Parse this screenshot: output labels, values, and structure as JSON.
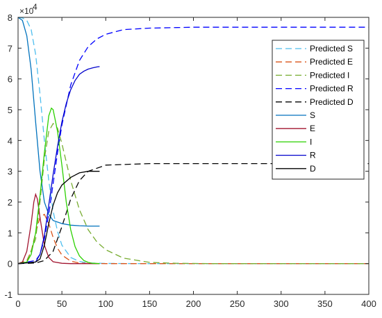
{
  "chart_data": {
    "type": "line",
    "title": "",
    "xlabel": "",
    "ylabel": "",
    "y_multiplier_label": "×10",
    "y_multiplier_exponent": "4",
    "xlim": [
      0,
      400
    ],
    "ylim": [
      -1,
      8
    ],
    "x_ticks": [
      0,
      50,
      100,
      150,
      200,
      250,
      300,
      350,
      400
    ],
    "y_ticks": [
      -1,
      0,
      1,
      2,
      3,
      4,
      5,
      6,
      7,
      8
    ],
    "grid": false,
    "legend_position": "top-right",
    "series": [
      {
        "name": "Predicted S",
        "color": "#4DBEEE",
        "style": "dashed",
        "x": [
          0,
          5,
          10,
          15,
          20,
          25,
          30,
          35,
          40,
          45,
          50,
          60,
          70,
          80,
          100,
          150,
          200,
          300,
          400
        ],
        "values": [
          8.0,
          7.98,
          7.9,
          7.6,
          6.8,
          5.5,
          4.0,
          2.7,
          1.7,
          1.05,
          0.6,
          0.2,
          0.07,
          0.02,
          0.005,
          0.0,
          0.0,
          0.0,
          0.0
        ]
      },
      {
        "name": "Predicted E",
        "color": "#D95319",
        "style": "dashed",
        "x": [
          0,
          10,
          15,
          20,
          25,
          30,
          35,
          40,
          45,
          50,
          60,
          70,
          80,
          100,
          150,
          200,
          300,
          400
        ],
        "values": [
          0.0,
          0.1,
          0.4,
          1.0,
          1.5,
          1.6,
          1.3,
          0.85,
          0.5,
          0.28,
          0.08,
          0.02,
          0.005,
          0.0,
          0.0,
          0.0,
          0.0,
          0.0
        ]
      },
      {
        "name": "Predicted I",
        "color": "#77AC30",
        "style": "dashed",
        "x": [
          0,
          10,
          20,
          25,
          30,
          35,
          40,
          45,
          50,
          55,
          60,
          70,
          80,
          90,
          100,
          120,
          150,
          180,
          220,
          300,
          400
        ],
        "values": [
          0.0,
          0.05,
          0.8,
          2.0,
          3.4,
          4.3,
          4.55,
          4.4,
          3.9,
          3.3,
          2.7,
          1.75,
          1.1,
          0.7,
          0.45,
          0.18,
          0.04,
          0.01,
          0.0,
          0.0,
          0.0
        ]
      },
      {
        "name": "Predicted R",
        "color": "#0000FF",
        "style": "dashed",
        "x": [
          0,
          20,
          25,
          30,
          35,
          40,
          45,
          50,
          60,
          70,
          80,
          90,
          100,
          120,
          150,
          200,
          250,
          300,
          350,
          400
        ],
        "values": [
          0.0,
          0.1,
          0.3,
          0.8,
          1.6,
          2.6,
          3.6,
          4.5,
          5.8,
          6.6,
          7.05,
          7.3,
          7.45,
          7.6,
          7.65,
          7.68,
          7.68,
          7.68,
          7.68,
          7.68
        ]
      },
      {
        "name": "Predicted D",
        "color": "#000000",
        "style": "dashed",
        "x": [
          0,
          20,
          30,
          40,
          50,
          60,
          70,
          80,
          100,
          150,
          200,
          300,
          400
        ],
        "values": [
          0.0,
          0.02,
          0.1,
          0.4,
          1.2,
          2.1,
          2.7,
          3.0,
          3.2,
          3.25,
          3.25,
          3.25,
          3.25
        ]
      },
      {
        "name": "S",
        "color": "#0072BD",
        "style": "solid",
        "x": [
          0,
          5,
          10,
          15,
          20,
          25,
          30,
          35,
          40,
          50,
          60,
          70,
          80,
          93
        ],
        "values": [
          8.0,
          7.9,
          7.4,
          6.3,
          4.6,
          3.0,
          2.0,
          1.6,
          1.4,
          1.3,
          1.25,
          1.23,
          1.22,
          1.22
        ]
      },
      {
        "name": "E",
        "color": "#A2142F",
        "style": "solid",
        "x": [
          0,
          5,
          10,
          15,
          18,
          20,
          22,
          25,
          30,
          35,
          40,
          50,
          60,
          70,
          80,
          93
        ],
        "values": [
          0.0,
          0.05,
          0.4,
          1.3,
          2.0,
          2.25,
          2.1,
          1.5,
          0.6,
          0.2,
          0.06,
          0.01,
          0.0,
          0.0,
          0.0,
          0.0
        ]
      },
      {
        "name": "I",
        "color": "#2BD000",
        "style": "solid",
        "x": [
          0,
          10,
          15,
          20,
          25,
          30,
          35,
          38,
          40,
          45,
          50,
          55,
          60,
          65,
          70,
          75,
          80,
          85,
          93
        ],
        "values": [
          0.0,
          0.05,
          0.3,
          1.0,
          2.2,
          3.6,
          4.8,
          5.05,
          5.0,
          4.3,
          3.2,
          2.0,
          1.1,
          0.55,
          0.25,
          0.1,
          0.04,
          0.01,
          0.0
        ]
      },
      {
        "name": "R",
        "color": "#0000CC",
        "style": "solid",
        "x": [
          0,
          20,
          25,
          30,
          35,
          40,
          45,
          50,
          55,
          60,
          65,
          70,
          75,
          80,
          85,
          90,
          93
        ],
        "values": [
          0.0,
          0.05,
          0.3,
          0.9,
          1.9,
          2.9,
          3.8,
          4.6,
          5.2,
          5.65,
          5.95,
          6.15,
          6.25,
          6.32,
          6.36,
          6.39,
          6.4
        ]
      },
      {
        "name": "D",
        "color": "#000000",
        "style": "solid",
        "x": [
          0,
          20,
          25,
          30,
          35,
          40,
          45,
          50,
          60,
          70,
          80,
          93
        ],
        "values": [
          0.0,
          0.05,
          0.15,
          0.6,
          1.3,
          1.9,
          2.3,
          2.55,
          2.8,
          2.95,
          3.0,
          3.0
        ]
      }
    ]
  }
}
